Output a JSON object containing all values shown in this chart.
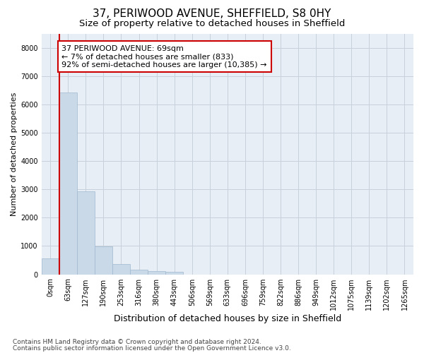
{
  "title_line1": "37, PERIWOOD AVENUE, SHEFFIELD, S8 0HY",
  "title_line2": "Size of property relative to detached houses in Sheffield",
  "xlabel": "Distribution of detached houses by size in Sheffield",
  "ylabel": "Number of detached properties",
  "categories": [
    "0sqm",
    "63sqm",
    "127sqm",
    "190sqm",
    "253sqm",
    "316sqm",
    "380sqm",
    "443sqm",
    "506sqm",
    "569sqm",
    "633sqm",
    "696sqm",
    "759sqm",
    "822sqm",
    "886sqm",
    "949sqm",
    "1012sqm",
    "1075sqm",
    "1139sqm",
    "1202sqm",
    "1265sqm"
  ],
  "values": [
    570,
    6420,
    2920,
    990,
    365,
    175,
    115,
    80,
    0,
    0,
    0,
    0,
    0,
    0,
    0,
    0,
    0,
    0,
    0,
    0,
    0
  ],
  "bar_color": "#c9d9e8",
  "bar_edgecolor": "#a0b8d0",
  "vline_color": "#cc0000",
  "annotation_text": "37 PERIWOOD AVENUE: 69sqm\n← 7% of detached houses are smaller (833)\n92% of semi-detached houses are larger (10,385) →",
  "annotation_box_color": "#ffffff",
  "annotation_box_edgecolor": "#cc0000",
  "ylim": [
    0,
    8500
  ],
  "yticks": [
    0,
    1000,
    2000,
    3000,
    4000,
    5000,
    6000,
    7000,
    8000
  ],
  "footnote1": "Contains HM Land Registry data © Crown copyright and database right 2024.",
  "footnote2": "Contains public sector information licensed under the Open Government Licence v3.0.",
  "background_color": "#ffffff",
  "plot_bg_color": "#e8eef5",
  "grid_color": "#c8d0dc",
  "title1_fontsize": 11,
  "title2_fontsize": 9.5,
  "xlabel_fontsize": 9,
  "ylabel_fontsize": 8,
  "tick_fontsize": 7,
  "annotation_fontsize": 8,
  "footnote_fontsize": 6.5
}
